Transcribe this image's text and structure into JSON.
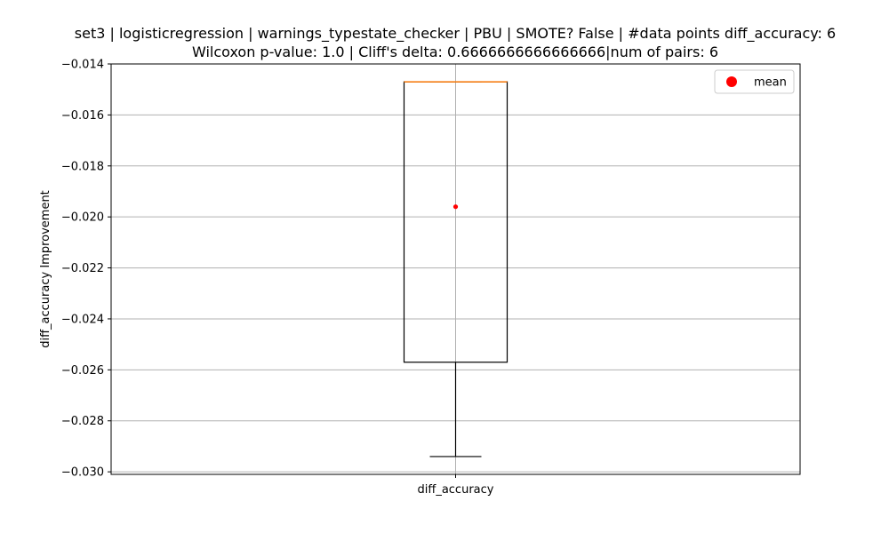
{
  "chart_data": {
    "type": "box",
    "title": [
      "set3 | logisticregression | warnings_typestate_checker | PBU | SMOTE? False | #data points diff_accuracy: 6",
      "Wilcoxon p-value: 1.0 | Cliff's delta: 0.6666666666666666|num of pairs: 6"
    ],
    "xlabel": "",
    "ylabel": "diff_accuracy Improvement",
    "categories": [
      "diff_accuracy"
    ],
    "ylim": [
      -0.0301,
      -0.014
    ],
    "yticks": [
      -0.014,
      -0.016,
      -0.018,
      -0.02,
      -0.022,
      -0.024,
      -0.026,
      -0.028,
      -0.03
    ],
    "ytick_labels": [
      "−0.014",
      "−0.016",
      "−0.018",
      "−0.020",
      "−0.022",
      "−0.024",
      "−0.026",
      "−0.028",
      "−0.030"
    ],
    "box": {
      "whisker_low": -0.0294,
      "q1": -0.0257,
      "median": -0.0147,
      "q3": -0.0147,
      "whisker_high": -0.0147,
      "mean": -0.0196
    },
    "grid": true,
    "legend": {
      "placement": "top-right",
      "entries": [
        {
          "label": "mean",
          "color": "#ff0000",
          "marker": "circle"
        }
      ]
    },
    "colors": {
      "box": "#000000",
      "median": "#ff7f0e",
      "mean": "#ff0000",
      "grid": "#b0b0b0"
    }
  }
}
